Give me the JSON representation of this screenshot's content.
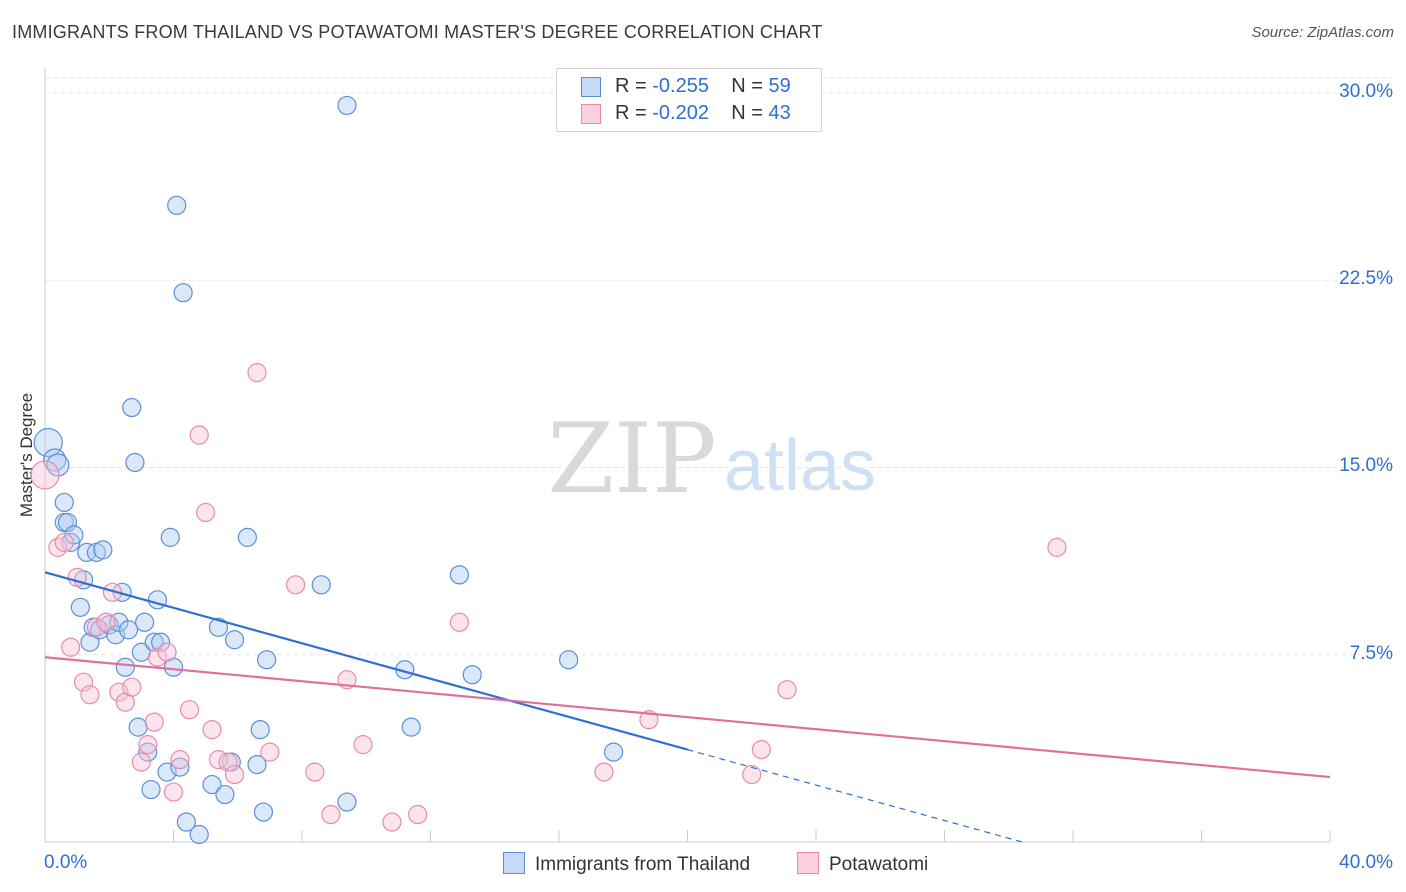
{
  "header": {
    "title": "IMMIGRANTS FROM THAILAND VS POTAWATOMI MASTER'S DEGREE CORRELATION CHART",
    "source": "Source: ZipAtlas.com"
  },
  "watermark": {
    "zip": "ZIP",
    "atlas": "atlas"
  },
  "legend": {
    "rows": [
      {
        "r_label": "R = ",
        "r_value": "-0.255",
        "n_label": "N = ",
        "n_value": "59"
      },
      {
        "r_label": "R = ",
        "r_value": "-0.202",
        "n_label": "N = ",
        "n_value": "43"
      }
    ]
  },
  "colors": {
    "series1_fill": "#aecbf5",
    "series1_stroke": "#5b8fd9",
    "series1_line": "#2f6fd0",
    "series2_fill": "#f7c3d4",
    "series2_stroke": "#e98aab",
    "series2_line": "#e0709a",
    "grid": "#e3e3e3",
    "axis_text": "#2f6fd0"
  },
  "chart_data": {
    "type": "scatter",
    "title": "IMMIGRANTS FROM THAILAND VS POTAWATOMI MASTER'S DEGREE CORRELATION CHART",
    "xlabel": "",
    "ylabel": "Master's Degree",
    "xlim": [
      0,
      40
    ],
    "ylim": [
      0,
      31
    ],
    "x_tick_labels": [
      "0.0%",
      "40.0%"
    ],
    "y_ticks": [
      7.5,
      15.0,
      22.5,
      30.0
    ],
    "y_tick_labels": [
      "7.5%",
      "15.0%",
      "22.5%",
      "30.0%"
    ],
    "grid": true,
    "series": [
      {
        "name": "Immigrants from Thailand",
        "r": -0.255,
        "n": 59,
        "trend": {
          "x0": 0,
          "y0": 10.8,
          "x1": 20,
          "y1": 3.7,
          "dash_to_x": 30.5
        },
        "points": [
          [
            0.1,
            16.0,
            14
          ],
          [
            0.3,
            15.3,
            11
          ],
          [
            0.4,
            15.1,
            11
          ],
          [
            0.6,
            12.8,
            9
          ],
          [
            0.6,
            13.6,
            9
          ],
          [
            0.7,
            12.8,
            9
          ],
          [
            0.8,
            12.0,
            9
          ],
          [
            0.9,
            12.3,
            9
          ],
          [
            1.1,
            9.4,
            9
          ],
          [
            1.2,
            10.5,
            9
          ],
          [
            1.3,
            11.6,
            9
          ],
          [
            1.4,
            8.0,
            9
          ],
          [
            1.5,
            8.6,
            9
          ],
          [
            1.6,
            11.6,
            9
          ],
          [
            1.7,
            8.5,
            9
          ],
          [
            1.8,
            11.7,
            9
          ],
          [
            2.0,
            8.7,
            9
          ],
          [
            2.2,
            8.3,
            9
          ],
          [
            2.3,
            8.8,
            9
          ],
          [
            2.4,
            10.0,
            9
          ],
          [
            2.5,
            7.0,
            9
          ],
          [
            2.7,
            17.4,
            9
          ],
          [
            2.8,
            15.2,
            9
          ],
          [
            2.9,
            4.6,
            9
          ],
          [
            3.0,
            7.6,
            9
          ],
          [
            3.1,
            8.8,
            9
          ],
          [
            3.2,
            3.6,
            9
          ],
          [
            3.3,
            2.1,
            9
          ],
          [
            3.4,
            8.0,
            9
          ],
          [
            3.5,
            9.7,
            9
          ],
          [
            3.6,
            8.0,
            9
          ],
          [
            3.8,
            2.8,
            9
          ],
          [
            3.9,
            12.2,
            9
          ],
          [
            4.0,
            7.0,
            9
          ],
          [
            4.1,
            25.5,
            9
          ],
          [
            4.3,
            22.0,
            9
          ],
          [
            4.4,
            0.8,
            9
          ],
          [
            4.8,
            0.3,
            9
          ],
          [
            5.2,
            2.3,
            9
          ],
          [
            5.4,
            8.6,
            9
          ],
          [
            5.6,
            1.9,
            9
          ],
          [
            5.8,
            3.2,
            9
          ],
          [
            5.9,
            8.1,
            9
          ],
          [
            6.3,
            12.2,
            9
          ],
          [
            6.6,
            3.1,
            9
          ],
          [
            6.7,
            4.5,
            9
          ],
          [
            6.8,
            1.2,
            9
          ],
          [
            6.9,
            7.3,
            9
          ],
          [
            8.6,
            10.3,
            9
          ],
          [
            9.4,
            29.5,
            9
          ],
          [
            9.4,
            1.6,
            9
          ],
          [
            11.2,
            6.9,
            9
          ],
          [
            11.4,
            4.6,
            9
          ],
          [
            12.9,
            10.7,
            9
          ],
          [
            13.3,
            6.7,
            9
          ],
          [
            16.3,
            7.3,
            9
          ],
          [
            17.7,
            3.6,
            9
          ],
          [
            4.2,
            3.0,
            9
          ],
          [
            2.6,
            8.5,
            9
          ]
        ]
      },
      {
        "name": "Potawatomi",
        "r": -0.202,
        "n": 43,
        "trend": {
          "x0": 0,
          "y0": 7.4,
          "x1": 40,
          "y1": 2.6
        },
        "points": [
          [
            0.0,
            14.7,
            14
          ],
          [
            0.4,
            11.8,
            9
          ],
          [
            0.6,
            12.0,
            9
          ],
          [
            0.8,
            7.8,
            9
          ],
          [
            1.0,
            10.6,
            9
          ],
          [
            1.2,
            6.4,
            9
          ],
          [
            1.4,
            5.9,
            9
          ],
          [
            1.6,
            8.6,
            9
          ],
          [
            1.9,
            8.8,
            9
          ],
          [
            2.1,
            10.0,
            9
          ],
          [
            2.3,
            6.0,
            9
          ],
          [
            2.5,
            5.6,
            9
          ],
          [
            2.7,
            6.2,
            9
          ],
          [
            3.0,
            3.2,
            9
          ],
          [
            3.2,
            3.9,
            9
          ],
          [
            3.4,
            4.8,
            9
          ],
          [
            3.5,
            7.4,
            9
          ],
          [
            3.8,
            7.6,
            9
          ],
          [
            4.0,
            2.0,
            9
          ],
          [
            4.2,
            3.3,
            9
          ],
          [
            4.5,
            5.3,
            9
          ],
          [
            4.8,
            16.3,
            9
          ],
          [
            5.0,
            13.2,
            9
          ],
          [
            5.2,
            4.5,
            9
          ],
          [
            5.4,
            3.3,
            9
          ],
          [
            5.7,
            3.2,
            9
          ],
          [
            5.9,
            2.7,
            9
          ],
          [
            6.6,
            18.8,
            9
          ],
          [
            7.0,
            3.6,
            9
          ],
          [
            7.8,
            10.3,
            9
          ],
          [
            8.4,
            2.8,
            9
          ],
          [
            8.9,
            1.1,
            9
          ],
          [
            9.4,
            6.5,
            9
          ],
          [
            9.9,
            3.9,
            9
          ],
          [
            10.8,
            0.8,
            9
          ],
          [
            11.6,
            1.1,
            9
          ],
          [
            12.9,
            8.8,
            9
          ],
          [
            17.4,
            2.8,
            9
          ],
          [
            18.8,
            4.9,
            9
          ],
          [
            22.0,
            2.7,
            9
          ],
          [
            22.3,
            3.7,
            9
          ],
          [
            23.1,
            6.1,
            9
          ],
          [
            31.5,
            11.8,
            9
          ]
        ]
      }
    ]
  }
}
